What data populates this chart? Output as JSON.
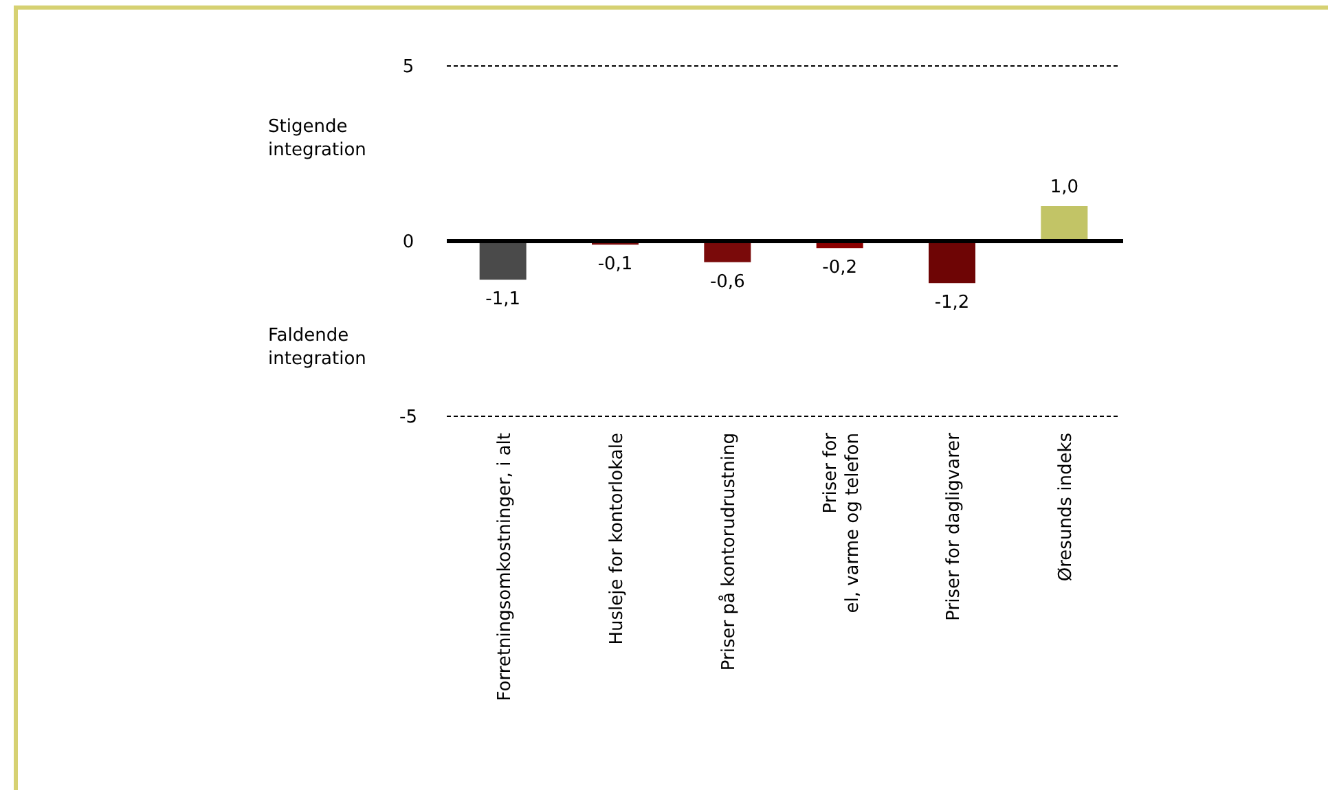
{
  "chart_data": {
    "type": "bar",
    "categories": [
      "Forretningsomkostninger, i alt",
      "Husleje for kontorlokale",
      "Priser på kontorudrustning",
      "Priser for\nel, varme og telefon",
      "Priser for dagligvarer",
      "Øresunds indeks"
    ],
    "values": [
      -1.1,
      -0.1,
      -0.6,
      -0.2,
      -1.2,
      1.0
    ],
    "colors": [
      "#4a4a4a",
      "#7a0a0a",
      "#7a0a0a",
      "#8b0000",
      "#6e0505",
      "#c2c466"
    ],
    "value_labels": [
      "-1,1",
      "-0,1",
      "-0,6",
      "-0,2",
      "-1,2",
      "1,0"
    ],
    "ylim": [
      -5,
      5
    ],
    "yticks": [
      -5,
      0,
      5
    ],
    "grid": "y",
    "annotations": [
      "Stigende integration",
      "Faldende integration"
    ]
  }
}
